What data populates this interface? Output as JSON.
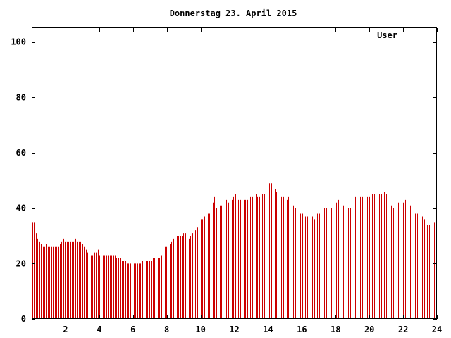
{
  "chart_data": {
    "type": "bar",
    "title": "Donnerstag 23. April 2015",
    "xlabel": "",
    "ylabel": "",
    "xlim": [
      0,
      24
    ],
    "ylim": [
      0,
      105
    ],
    "x_ticks": [
      "2",
      "4",
      "6",
      "8",
      "10",
      "12",
      "14",
      "16",
      "18",
      "20",
      "22",
      "24"
    ],
    "y_ticks": [
      "0",
      "20",
      "40",
      "60",
      "80",
      "100"
    ],
    "grid": false,
    "legend": "top-right",
    "series": [
      {
        "name": "User",
        "color": "#cc0000",
        "interval_hours": 0.0833,
        "values": [
          35,
          35,
          31,
          29,
          28,
          27,
          26,
          26,
          27,
          26,
          26,
          26,
          26,
          26,
          26,
          26,
          27,
          28,
          29,
          28,
          28,
          28,
          28,
          28,
          28,
          29,
          28,
          28,
          28,
          27,
          26,
          25,
          24,
          24,
          23,
          23,
          24,
          24,
          25,
          23,
          23,
          23,
          23,
          23,
          23,
          23,
          23,
          23,
          23,
          22,
          22,
          22,
          21,
          21,
          21,
          20,
          20,
          20,
          20,
          20,
          20,
          20,
          20,
          20,
          21,
          22,
          21,
          21,
          21,
          21,
          22,
          22,
          22,
          22,
          22,
          23,
          25,
          26,
          26,
          26,
          27,
          28,
          29,
          30,
          30,
          30,
          30,
          30,
          31,
          31,
          30,
          29,
          30,
          31,
          32,
          32,
          33,
          35,
          36,
          36,
          37,
          38,
          38,
          38,
          40,
          42,
          44,
          40,
          40,
          41,
          41,
          42,
          42,
          43,
          42,
          43,
          43,
          44,
          45,
          43,
          43,
          43,
          43,
          43,
          43,
          43,
          43,
          44,
          44,
          44,
          45,
          44,
          44,
          44,
          45,
          45,
          46,
          47,
          49,
          49,
          49,
          47,
          46,
          45,
          44,
          44,
          44,
          43,
          43,
          44,
          43,
          42,
          41,
          40,
          38,
          38,
          38,
          38,
          38,
          37,
          37,
          38,
          38,
          37,
          36,
          37,
          38,
          38,
          38,
          39,
          40,
          40,
          41,
          41,
          40,
          40,
          41,
          42,
          43,
          44,
          43,
          41,
          41,
          40,
          40,
          40,
          41,
          43,
          44,
          44,
          44,
          44,
          44,
          44,
          44,
          44,
          44,
          43,
          45,
          45,
          45,
          45,
          45,
          45,
          46,
          46,
          45,
          44,
          42,
          41,
          40,
          40,
          41,
          42,
          42,
          42,
          42,
          43,
          43,
          42,
          41,
          40,
          39,
          38,
          38,
          38,
          38,
          37,
          36,
          35,
          34,
          34,
          36,
          35,
          35,
          35
        ]
      }
    ]
  }
}
